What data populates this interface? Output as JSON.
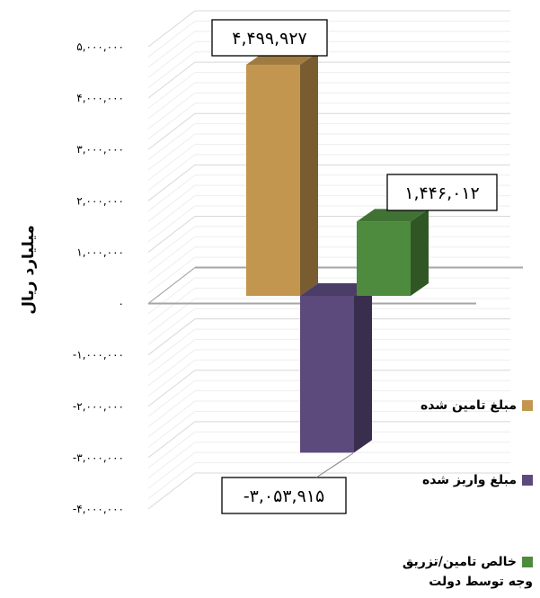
{
  "chart_data": {
    "type": "bar",
    "ylabel": "میلیارد ریال",
    "ylim": [
      -4000000,
      5000000
    ],
    "yticks": [
      {
        "value": 5000000,
        "label": "۵,۰۰۰,۰۰۰"
      },
      {
        "value": 4000000,
        "label": "۴,۰۰۰,۰۰۰"
      },
      {
        "value": 3000000,
        "label": "۳,۰۰۰,۰۰۰"
      },
      {
        "value": 2000000,
        "label": "۲,۰۰۰,۰۰۰"
      },
      {
        "value": 1000000,
        "label": "۱,۰۰۰,۰۰۰"
      },
      {
        "value": 0,
        "label": "۰"
      },
      {
        "value": -1000000,
        "label": "-۱,۰۰۰,۰۰۰"
      },
      {
        "value": -2000000,
        "label": "-۲,۰۰۰,۰۰۰"
      },
      {
        "value": -3000000,
        "label": "-۳,۰۰۰,۰۰۰"
      },
      {
        "value": -4000000,
        "label": "-۴,۰۰۰,۰۰۰"
      }
    ],
    "series": [
      {
        "name": "مبلغ تامین شده",
        "value": 4499927,
        "label": "۴,۴۹۹,۹۲۷",
        "color": "#c3964f"
      },
      {
        "name": "مبلغ واریز شده",
        "value": -3053915,
        "label": "-۳,۰۵۳,۹۱۵",
        "color": "#5c4a7c"
      },
      {
        "name": "خالص تامین/تزریق وجه توسط دولت",
        "value": 1446012,
        "label": "۱,۴۴۶,۰۱۲",
        "color": "#4e8b3e"
      }
    ],
    "legend": [
      {
        "text": "مبلغ تامین شده",
        "color": "#c3964f"
      },
      {
        "text": "مبلغ واریز شده",
        "color": "#5c4a7c"
      },
      {
        "text_line1": "خالص تامین/تزریق",
        "text_line2": "وجه توسط دولت",
        "color": "#4e8b3e"
      }
    ],
    "grid": true,
    "legend_position": "right"
  }
}
